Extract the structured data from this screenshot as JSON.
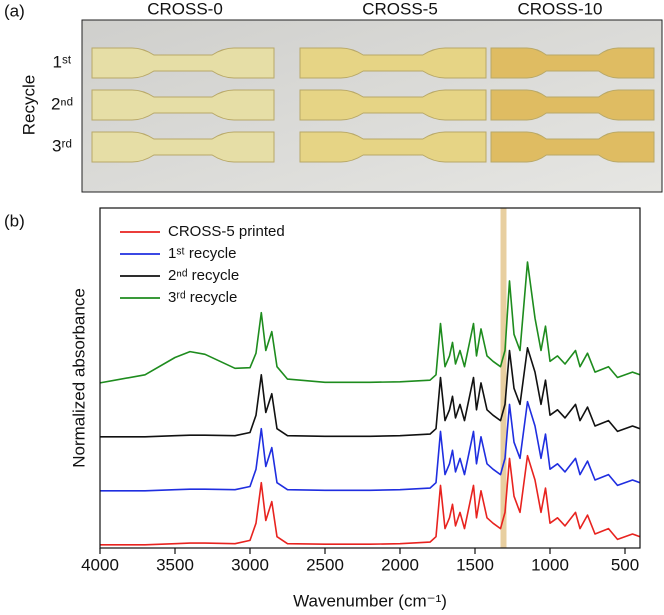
{
  "panel_a": {
    "label": "(a)",
    "columns": [
      "CROSS-0",
      "CROSS-5",
      "CROSS-10"
    ],
    "row_title": "Recycle",
    "rows": [
      "1ˢᵗ",
      "2ⁿᵈ",
      "3ʳᵈ"
    ]
  },
  "chart_data": {
    "type": "line",
    "panel_label": "(b)",
    "xlabel": "Wavenumber (cm⁻¹)",
    "ylabel": "Normalized absorbance",
    "xlim": [
      4000,
      400
    ],
    "xticks": [
      4000,
      3500,
      3000,
      2500,
      2000,
      1500,
      1000,
      500
    ],
    "ylim": [
      0,
      6.3
    ],
    "highlight_band": [
      1330,
      1290
    ],
    "highlight_color": "#e8cfa0",
    "x": [
      4000,
      3700,
      3500,
      3400,
      3300,
      3100,
      3000,
      2960,
      2925,
      2895,
      2855,
      2820,
      2750,
      2500,
      2200,
      2000,
      1800,
      1760,
      1730,
      1700,
      1670,
      1650,
      1630,
      1600,
      1570,
      1510,
      1490,
      1460,
      1420,
      1380,
      1330,
      1300,
      1270,
      1240,
      1200,
      1150,
      1100,
      1060,
      1030,
      1000,
      950,
      900,
      830,
      800,
      750,
      700,
      610,
      550,
      450,
      400
    ],
    "series": [
      {
        "name": "CROSS-5 printed",
        "color": "#e8231f",
        "values": [
          0.06,
          0.06,
          0.08,
          0.09,
          0.09,
          0.08,
          0.14,
          0.46,
          1.21,
          0.51,
          0.86,
          0.21,
          0.08,
          0.07,
          0.07,
          0.08,
          0.11,
          0.21,
          1.16,
          0.36,
          0.56,
          0.81,
          0.41,
          0.66,
          0.36,
          1.16,
          0.56,
          1.06,
          0.56,
          0.46,
          0.36,
          0.66,
          1.66,
          0.96,
          0.66,
          1.71,
          1.26,
          0.66,
          1.11,
          0.46,
          0.56,
          0.41,
          0.66,
          0.36,
          0.61,
          0.26,
          0.36,
          0.16,
          0.26,
          0.21
        ]
      },
      {
        "name": "1ˢᵗ recycle",
        "color": "#1f2ee0",
        "values": [
          1.06,
          1.06,
          1.08,
          1.09,
          1.09,
          1.08,
          1.14,
          1.46,
          2.21,
          1.51,
          1.86,
          1.21,
          1.08,
          1.07,
          1.07,
          1.08,
          1.11,
          1.21,
          2.16,
          1.36,
          1.56,
          1.81,
          1.41,
          1.66,
          1.36,
          2.16,
          1.56,
          2.06,
          1.56,
          1.46,
          1.36,
          1.66,
          2.66,
          1.96,
          1.66,
          2.71,
          2.26,
          1.66,
          2.11,
          1.46,
          1.56,
          1.41,
          1.66,
          1.36,
          1.61,
          1.26,
          1.36,
          1.16,
          1.26,
          1.21
        ]
      },
      {
        "name": "2ⁿᵈ recycle",
        "color": "#111111",
        "values": [
          2.06,
          2.06,
          2.08,
          2.09,
          2.09,
          2.08,
          2.14,
          2.46,
          3.21,
          2.51,
          2.86,
          2.21,
          2.08,
          2.07,
          2.07,
          2.08,
          2.11,
          2.21,
          3.16,
          2.36,
          2.56,
          2.81,
          2.41,
          2.66,
          2.36,
          3.16,
          2.56,
          3.06,
          2.56,
          2.46,
          2.36,
          2.66,
          3.66,
          2.96,
          2.66,
          3.71,
          3.26,
          2.66,
          3.11,
          2.46,
          2.56,
          2.41,
          2.66,
          2.36,
          2.61,
          2.26,
          2.36,
          2.16,
          2.26,
          2.21
        ]
      },
      {
        "name": "3ʳᵈ recycle",
        "color": "#1e8c1e",
        "values": [
          3.06,
          3.21,
          3.53,
          3.64,
          3.59,
          3.33,
          3.34,
          3.61,
          4.36,
          3.66,
          4.01,
          3.36,
          3.13,
          3.07,
          3.07,
          3.08,
          3.11,
          3.21,
          4.16,
          3.36,
          3.56,
          3.81,
          3.41,
          3.66,
          3.36,
          4.16,
          3.56,
          4.06,
          3.56,
          3.46,
          3.36,
          3.66,
          4.95,
          3.96,
          3.66,
          5.3,
          4.26,
          3.66,
          4.11,
          3.46,
          3.56,
          3.41,
          3.66,
          3.36,
          3.61,
          3.26,
          3.36,
          3.16,
          3.26,
          3.21
        ]
      }
    ]
  }
}
